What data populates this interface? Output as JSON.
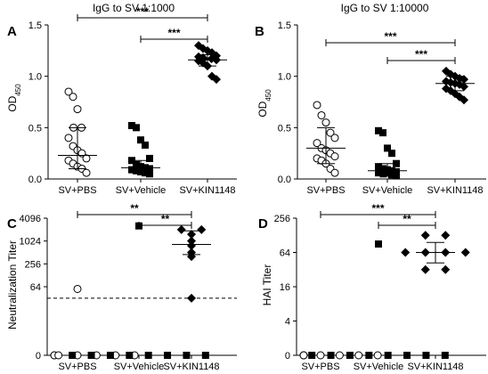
{
  "chart_data": [
    {
      "panel": "A",
      "type": "scatter",
      "title": "IgG to SV 1:1000",
      "xlabel": "",
      "ylabel": "OD",
      "ylabel_sub": "450",
      "categories": [
        "SV+PBS",
        "SV+Vehicle",
        "SV+KIN1148"
      ],
      "yscale": "linear",
      "ylim": [
        0,
        1.5
      ],
      "yticks": [
        0.0,
        0.5,
        1.0,
        1.5
      ],
      "ytick_labels": [
        "0.0",
        "0.5",
        "1.0",
        "1.5"
      ],
      "series": [
        {
          "marker": "open-circle",
          "values": [
            0.85,
            0.8,
            0.68,
            0.5,
            0.5,
            0.4,
            0.32,
            0.28,
            0.25,
            0.2,
            0.18,
            0.15,
            0.12,
            0.1,
            0.06
          ],
          "center": 0.23,
          "error": [
            0.1,
            0.5
          ]
        },
        {
          "marker": "filled-square",
          "values": [
            0.52,
            0.5,
            0.38,
            0.33,
            0.2,
            0.18,
            0.14,
            0.12,
            0.11,
            0.1,
            0.09,
            0.08,
            0.07,
            0.06,
            0.05
          ],
          "center": 0.11,
          "error": [
            0.06,
            0.18
          ]
        },
        {
          "marker": "filled-diamond",
          "values": [
            1.3,
            1.27,
            1.25,
            1.23,
            1.2,
            1.19,
            1.18,
            1.17,
            1.17,
            1.16,
            1.15,
            1.13,
            1.1,
            1.0,
            0.97
          ],
          "center": 1.16,
          "error": [
            1.1,
            1.21
          ]
        }
      ],
      "significance": [
        {
          "from": 0,
          "to": 2,
          "label": "***"
        },
        {
          "from": 1,
          "to": 2,
          "label": "***"
        }
      ]
    },
    {
      "panel": "B",
      "type": "scatter",
      "title": "IgG to SV 1:10000",
      "xlabel": "",
      "ylabel": "OD",
      "ylabel_sub": "450",
      "categories": [
        "SV+PBS",
        "SV+Vehicle",
        "SV+KIN1148"
      ],
      "yscale": "linear",
      "ylim": [
        0,
        1.5
      ],
      "yticks": [
        0.0,
        0.5,
        1.0,
        1.5
      ],
      "ytick_labels": [
        "0.0",
        "0.5",
        "1.0",
        "1.5"
      ],
      "series": [
        {
          "marker": "open-circle",
          "values": [
            0.72,
            0.62,
            0.55,
            0.45,
            0.4,
            0.35,
            0.3,
            0.28,
            0.25,
            0.22,
            0.2,
            0.18,
            0.15,
            0.1,
            0.06
          ],
          "center": 0.3,
          "error": [
            0.15,
            0.5
          ]
        },
        {
          "marker": "filled-square",
          "values": [
            0.47,
            0.45,
            0.3,
            0.25,
            0.15,
            0.12,
            0.1,
            0.09,
            0.08,
            0.07,
            0.06,
            0.05,
            0.05,
            0.04,
            0.03
          ],
          "center": 0.08,
          "error": [
            0.03,
            0.15
          ]
        },
        {
          "marker": "filled-diamond",
          "values": [
            1.05,
            1.02,
            1.0,
            0.98,
            0.97,
            0.95,
            0.94,
            0.93,
            0.92,
            0.9,
            0.88,
            0.86,
            0.83,
            0.8,
            0.77
          ],
          "center": 0.93,
          "error": [
            0.86,
            1.0
          ]
        }
      ],
      "significance": [
        {
          "from": 0,
          "to": 2,
          "label": "***"
        },
        {
          "from": 1,
          "to": 2,
          "label": "***"
        }
      ]
    },
    {
      "panel": "C",
      "type": "scatter",
      "title": "",
      "xlabel": "",
      "ylabel": "Neutralization Titer",
      "categories": [
        "SV+PBS",
        "SV+Vehicle",
        "SV+KIN1148"
      ],
      "yscale": "log2",
      "ylim": [
        1,
        4096
      ],
      "yticks": [
        1,
        64,
        256,
        1024,
        4096
      ],
      "ytick_labels": [
        "0",
        "64",
        "256",
        "1024",
        "4096"
      ],
      "detection_limit": 32,
      "series": [
        {
          "marker": "open-circle",
          "values": [
            1,
            1,
            1,
            1,
            1,
            1,
            1,
            56
          ]
        },
        {
          "marker": "filled-square",
          "values": [
            1,
            1,
            1,
            1,
            1,
            1,
            1,
            1,
            2560
          ]
        },
        {
          "marker": "filled-diamond",
          "values": [
            2048,
            2048,
            1536,
            1024,
            768,
            512,
            400,
            32
          ],
          "center": 830,
          "error": [
            450,
            1900
          ]
        }
      ],
      "significance": [
        {
          "from": 0,
          "to": 2,
          "label": "**"
        },
        {
          "from": 1,
          "to": 2,
          "label": "**"
        }
      ]
    },
    {
      "panel": "D",
      "type": "scatter",
      "title": "",
      "xlabel": "",
      "ylabel": "HAI Titer",
      "categories": [
        "SV+PBS",
        "SV+Vehicle",
        "SV+KIN1148"
      ],
      "yscale": "log2",
      "ylim": [
        1,
        256
      ],
      "yticks": [
        1,
        4,
        16,
        64,
        256
      ],
      "ytick_labels": [
        "0",
        "4",
        "16",
        "64",
        "256"
      ],
      "series": [
        {
          "marker": "open-circle",
          "values": [
            1,
            1,
            1,
            1,
            1,
            1,
            1
          ]
        },
        {
          "marker": "filled-square",
          "values": [
            1,
            1,
            1,
            1,
            1,
            1,
            1,
            1,
            90
          ]
        },
        {
          "marker": "filled-diamond",
          "values": [
            128,
            128,
            64,
            64,
            64,
            64,
            32,
            32
          ],
          "center": 64,
          "error": [
            42,
            96
          ]
        }
      ],
      "significance": [
        {
          "from": 0,
          "to": 2,
          "label": "***"
        },
        {
          "from": 1,
          "to": 2,
          "label": "**"
        }
      ]
    }
  ]
}
